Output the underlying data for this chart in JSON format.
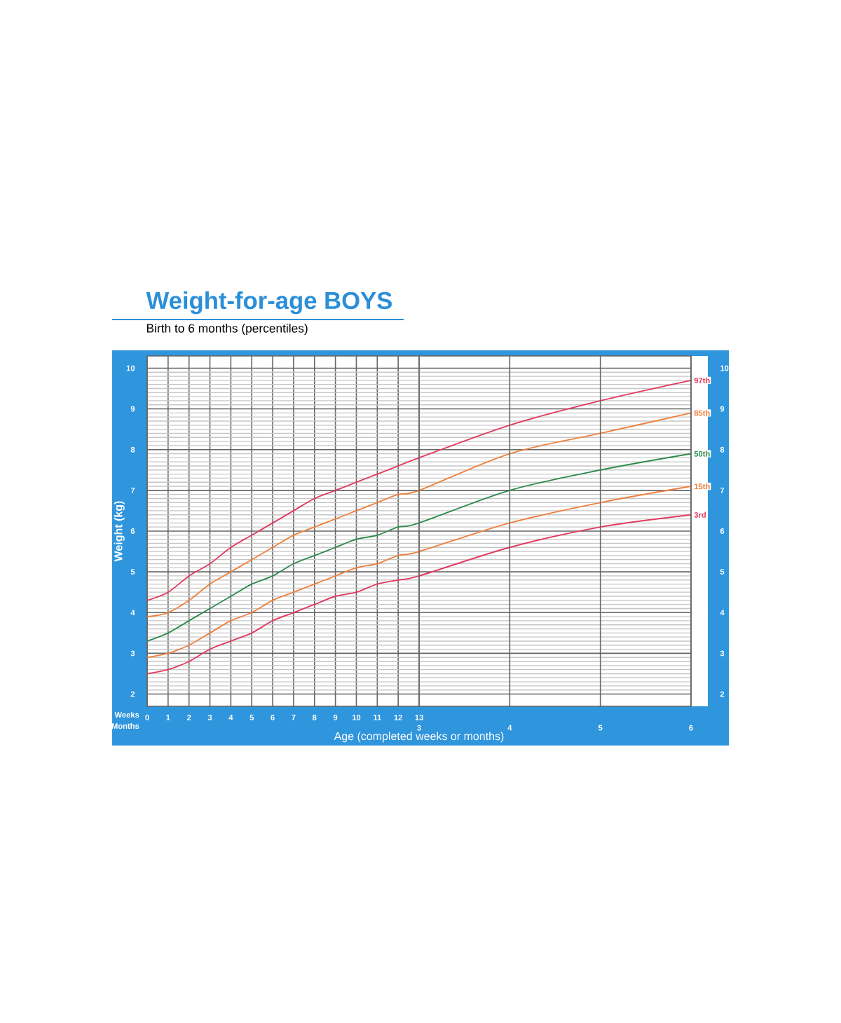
{
  "chart_data": {
    "type": "line",
    "title": "Weight-for-age BOYS",
    "subtitle": "Birth to 6 months (percentiles)",
    "xlabel": "Age (completed weeks or months)",
    "ylabel": "Weight (kg)",
    "annotations": [
      "Weeks",
      "Months"
    ],
    "x": [
      0,
      1,
      2,
      3,
      4,
      5,
      6,
      7,
      8,
      9,
      10,
      11,
      12,
      13,
      17.33,
      21.67,
      26
    ],
    "xlim": [
      0,
      26
    ],
    "xticks": [
      0,
      1,
      2,
      3,
      4,
      5,
      6,
      7,
      8,
      9,
      10,
      11,
      12,
      13
    ],
    "x2lim": [
      0,
      6
    ],
    "x2ticks": [
      3,
      4,
      5,
      6
    ],
    "ylim": [
      1.7,
      10.3
    ],
    "yticks": [
      2,
      3,
      4,
      5,
      6,
      7,
      8,
      9,
      10
    ],
    "y2lim": [
      1.7,
      10.3
    ],
    "y2ticks": [
      2,
      3,
      4,
      5,
      6,
      7,
      8,
      9,
      10
    ],
    "grid": true,
    "legend": false,
    "marker": "none",
    "line_style": "solid",
    "series": [
      {
        "name": "97th",
        "color": "#e23a5e",
        "values": [
          4.3,
          4.5,
          4.9,
          5.2,
          5.6,
          5.9,
          6.2,
          6.5,
          6.8,
          7.0,
          7.2,
          7.4,
          7.6,
          7.8,
          8.6,
          9.2,
          9.7
        ]
      },
      {
        "name": "85th",
        "color": "#f0803c",
        "values": [
          3.9,
          4.0,
          4.3,
          4.7,
          5.0,
          5.3,
          5.6,
          5.9,
          6.1,
          6.3,
          6.5,
          6.7,
          6.9,
          7.0,
          7.9,
          8.4,
          8.9
        ]
      },
      {
        "name": "50th",
        "color": "#2e8b4e",
        "values": [
          3.3,
          3.5,
          3.8,
          4.1,
          4.4,
          4.7,
          4.9,
          5.2,
          5.4,
          5.6,
          5.8,
          5.9,
          6.1,
          6.2,
          7.0,
          7.5,
          7.9
        ]
      },
      {
        "name": "15th",
        "color": "#f0803c",
        "values": [
          2.9,
          3.0,
          3.2,
          3.5,
          3.8,
          4.0,
          4.3,
          4.5,
          4.7,
          4.9,
          5.1,
          5.2,
          5.4,
          5.5,
          6.2,
          6.7,
          7.1
        ]
      },
      {
        "name": "3rd",
        "color": "#e23a5e",
        "values": [
          2.5,
          2.6,
          2.8,
          3.1,
          3.3,
          3.5,
          3.8,
          4.0,
          4.2,
          4.4,
          4.5,
          4.7,
          4.8,
          4.9,
          5.6,
          6.1,
          6.4
        ]
      }
    ]
  }
}
